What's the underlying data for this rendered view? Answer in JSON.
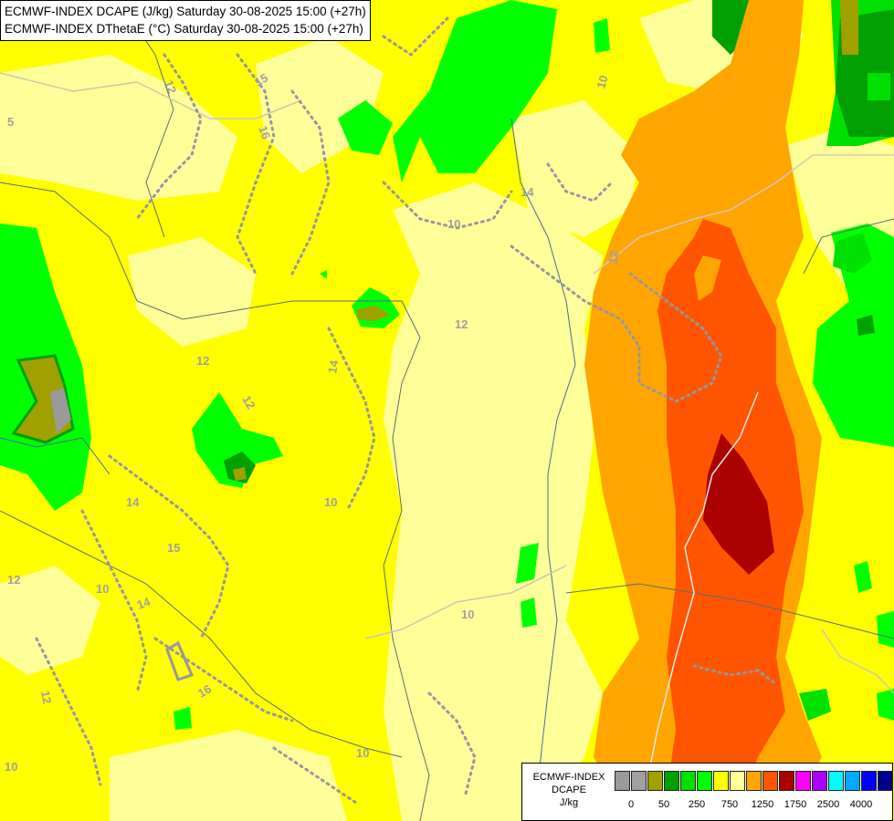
{
  "title": {
    "line1": "ECMWF-INDEX DCAPE (J/kg) Saturday 30-08-2025 15:00 (+27h)",
    "line2": "ECMWF-INDEX DThetaE (°C) Saturday 30-08-2025 15:00 (+27h)"
  },
  "legend": {
    "model": "ECMWF-INDEX",
    "variable": "DCAPE",
    "unit": "J/kg",
    "colors": [
      "#9a9a9a",
      "#a0a0a0",
      "#a0a000",
      "#00a000",
      "#00e000",
      "#00ff00",
      "#ffff00",
      "#ffff99",
      "#ffa500",
      "#ff5500",
      "#aa0000",
      "#ff00ff",
      "#aa00ff",
      "#00ffff",
      "#00aaff",
      "#0000ff",
      "#00008b"
    ],
    "tick_labels": [
      "0",
      "50",
      "250",
      "750",
      "1250",
      "1750",
      "2500",
      "4000"
    ]
  },
  "contour_labels": [
    "5",
    "10",
    "10",
    "10",
    "10",
    "10",
    "10",
    "10",
    "12",
    "12",
    "12",
    "12",
    "12",
    "12",
    "12",
    "14",
    "14",
    "14",
    "14",
    "15",
    "15",
    "16",
    "16"
  ],
  "fill_colors": {
    "yellow": "#ffff00",
    "pale_yellow": "#ffff99",
    "light_green": "#00ff00",
    "green": "#00e000",
    "dark_green": "#00a000",
    "olive": "#a0a000",
    "orange": "#ffa500",
    "red_orange": "#ff5500",
    "dark_red": "#aa0000",
    "grey": "#9a9a9a"
  }
}
